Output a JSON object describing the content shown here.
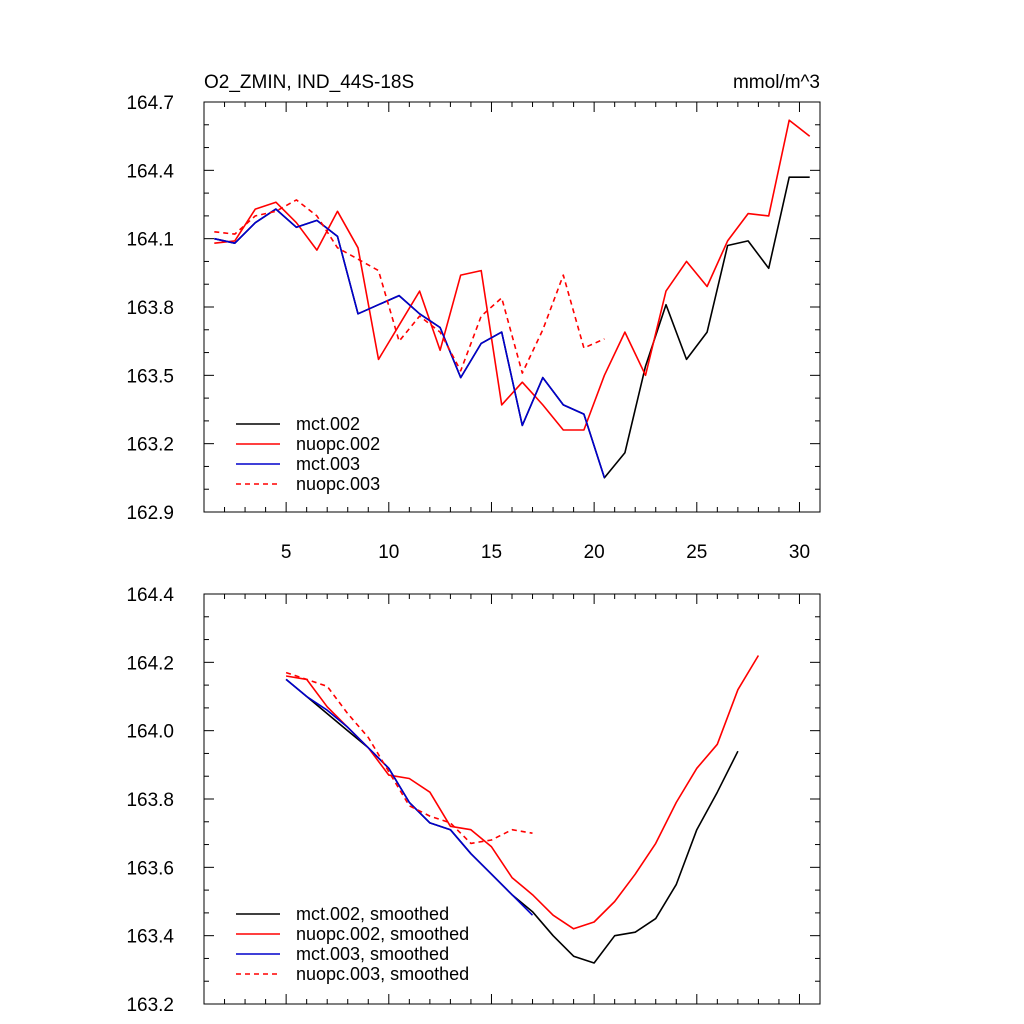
{
  "header": {
    "title": "O2_ZMIN, IND_44S-18S",
    "units": "mmol/m^3"
  },
  "colors": {
    "mct_002": "#000000",
    "nuopc_002": "#ff0000",
    "mct_003": "#0000cc",
    "nuopc_003": "#ff0000"
  },
  "chart_data": [
    {
      "type": "line",
      "title": "O2_ZMIN, IND_44S-18S",
      "units_label": "mmol/m^3",
      "xlim": [
        1,
        31
      ],
      "ylim": [
        162.9,
        164.7
      ],
      "x_ticks": [
        5,
        10,
        15,
        20,
        25,
        30
      ],
      "x_tick_labels": [
        "5",
        "10",
        "15",
        "20",
        "25",
        "30"
      ],
      "y_ticks": [
        162.9,
        163.2,
        163.5,
        163.8,
        164.1,
        164.4,
        164.7
      ],
      "y_tick_labels": [
        "162.9",
        "163.2",
        "163.5",
        "163.8",
        "164.1",
        "164.4",
        "164.7"
      ],
      "legend_position": "lower-left",
      "series": [
        {
          "name": "mct.002",
          "color": "#000000",
          "dash": "solid",
          "x": [
            1.5,
            2.5,
            3.5,
            4.5,
            5.5,
            6.5,
            7.5,
            8.5,
            9.5,
            10.5,
            11.5,
            12.5,
            13.5,
            14.5,
            15.5,
            16.5,
            17.5,
            18.5,
            19.5,
            20.5,
            21.5,
            22.5,
            23.5,
            24.5,
            25.5,
            26.5,
            27.5,
            28.5,
            29.5,
            30.5
          ],
          "values": [
            164.1,
            164.08,
            164.17,
            164.23,
            164.15,
            164.18,
            164.11,
            163.77,
            163.81,
            163.85,
            163.77,
            163.71,
            163.49,
            163.64,
            163.69,
            163.28,
            163.49,
            163.37,
            163.33,
            163.05,
            163.16,
            163.54,
            163.81,
            163.57,
            163.69,
            164.07,
            164.09,
            163.97,
            164.37,
            164.37
          ]
        },
        {
          "name": "nuopc.002",
          "color": "#ff0000",
          "dash": "solid",
          "x": [
            1.5,
            2.5,
            3.5,
            4.5,
            5.5,
            6.5,
            7.5,
            8.5,
            9.5,
            10.5,
            11.5,
            12.5,
            13.5,
            14.5,
            15.5,
            16.5,
            17.5,
            18.5,
            19.5,
            20.5,
            21.5,
            22.5,
            23.5,
            24.5,
            25.5,
            26.5,
            27.5,
            28.5,
            29.5,
            30.5
          ],
          "values": [
            164.08,
            164.09,
            164.23,
            164.26,
            164.17,
            164.05,
            164.22,
            164.06,
            163.57,
            163.72,
            163.87,
            163.61,
            163.94,
            163.96,
            163.37,
            163.47,
            163.37,
            163.26,
            163.26,
            163.5,
            163.69,
            163.5,
            163.87,
            164.0,
            163.89,
            164.09,
            164.21,
            164.2,
            164.62,
            164.55
          ]
        },
        {
          "name": "mct.003",
          "color": "#0000cc",
          "dash": "solid",
          "x": [
            1.5,
            2.5,
            3.5,
            4.5,
            5.5,
            6.5,
            7.5,
            8.5,
            9.5,
            10.5,
            11.5,
            12.5,
            13.5,
            14.5,
            15.5,
            16.5,
            17.5,
            18.5,
            19.5,
            20.5
          ],
          "values": [
            164.1,
            164.08,
            164.17,
            164.23,
            164.15,
            164.18,
            164.11,
            163.77,
            163.81,
            163.85,
            163.77,
            163.71,
            163.49,
            163.64,
            163.69,
            163.28,
            163.49,
            163.37,
            163.33,
            163.05
          ]
        },
        {
          "name": "nuopc.003",
          "color": "#ff0000",
          "dash": "dashed",
          "x": [
            1.5,
            2.5,
            3.5,
            4.5,
            5.5,
            6.5,
            7.5,
            8.5,
            9.5,
            10.5,
            11.5,
            12.5,
            13.5,
            14.5,
            15.5,
            16.5,
            17.5,
            18.5,
            19.5,
            20.5
          ],
          "values": [
            164.13,
            164.12,
            164.2,
            164.22,
            164.27,
            164.2,
            164.06,
            164.01,
            163.96,
            163.65,
            163.76,
            163.69,
            163.52,
            163.76,
            163.84,
            163.51,
            163.7,
            163.94,
            163.62,
            163.66
          ]
        }
      ]
    },
    {
      "type": "line",
      "title": "",
      "xlim": [
        1,
        31
      ],
      "ylim": [
        163.2,
        164.4
      ],
      "x_ticks": [
        5,
        10,
        15,
        20,
        25,
        30
      ],
      "x_tick_labels": [],
      "y_ticks": [
        163.2,
        163.4,
        163.6,
        163.8,
        164.0,
        164.2,
        164.4
      ],
      "y_tick_labels": [
        "163.2",
        "163.4",
        "163.6",
        "163.8",
        "164.0",
        "164.2",
        "164.4"
      ],
      "legend_position": "lower-left",
      "series": [
        {
          "name": "mct.002, smoothed",
          "color": "#000000",
          "dash": "solid",
          "x": [
            5.0,
            6.0,
            7.0,
            8.0,
            9.0,
            10.0,
            11.0,
            12.0,
            13.0,
            14.0,
            15.0,
            16.0,
            17.0,
            18.0,
            19.0,
            20.0,
            21.0,
            22.0,
            23.0,
            24.0,
            25.0,
            26.0,
            27.0
          ],
          "values": [
            164.15,
            164.1,
            164.05,
            164.0,
            163.95,
            163.89,
            163.79,
            163.73,
            163.71,
            163.64,
            163.58,
            163.52,
            163.47,
            163.4,
            163.34,
            163.32,
            163.4,
            163.41,
            163.45,
            163.55,
            163.71,
            163.82,
            163.94
          ]
        },
        {
          "name": "nuopc.002, smoothed",
          "color": "#ff0000",
          "dash": "solid",
          "x": [
            5.0,
            6.0,
            7.0,
            8.0,
            9.0,
            10.0,
            11.0,
            12.0,
            13.0,
            14.0,
            15.0,
            16.0,
            17.0,
            18.0,
            19.0,
            20.0,
            21.0,
            22.0,
            23.0,
            24.0,
            25.0,
            26.0,
            27.0,
            28.0
          ],
          "values": [
            164.16,
            164.15,
            164.07,
            164.01,
            163.95,
            163.87,
            163.86,
            163.82,
            163.72,
            163.71,
            163.66,
            163.57,
            163.52,
            163.46,
            163.42,
            163.44,
            163.5,
            163.58,
            163.67,
            163.79,
            163.89,
            163.96,
            164.12,
            164.22
          ]
        },
        {
          "name": "mct.003, smoothed",
          "color": "#0000cc",
          "dash": "solid",
          "x": [
            5.0,
            6.0,
            7.0,
            8.0,
            9.0,
            10.0,
            11.0,
            12.0,
            13.0,
            14.0,
            15.0,
            16.0,
            17.0
          ],
          "values": [
            164.15,
            164.1,
            164.06,
            164.01,
            163.95,
            163.89,
            163.79,
            163.73,
            163.71,
            163.64,
            163.58,
            163.52,
            163.46
          ]
        },
        {
          "name": "nuopc.003, smoothed",
          "color": "#ff0000",
          "dash": "dashed",
          "x": [
            5.0,
            6.0,
            7.0,
            8.0,
            9.0,
            10.0,
            11.0,
            12.0,
            13.0,
            14.0,
            15.0,
            16.0,
            17.0
          ],
          "values": [
            164.17,
            164.15,
            164.13,
            164.05,
            163.98,
            163.88,
            163.78,
            163.75,
            163.73,
            163.67,
            163.68,
            163.71,
            163.7
          ]
        }
      ]
    }
  ]
}
